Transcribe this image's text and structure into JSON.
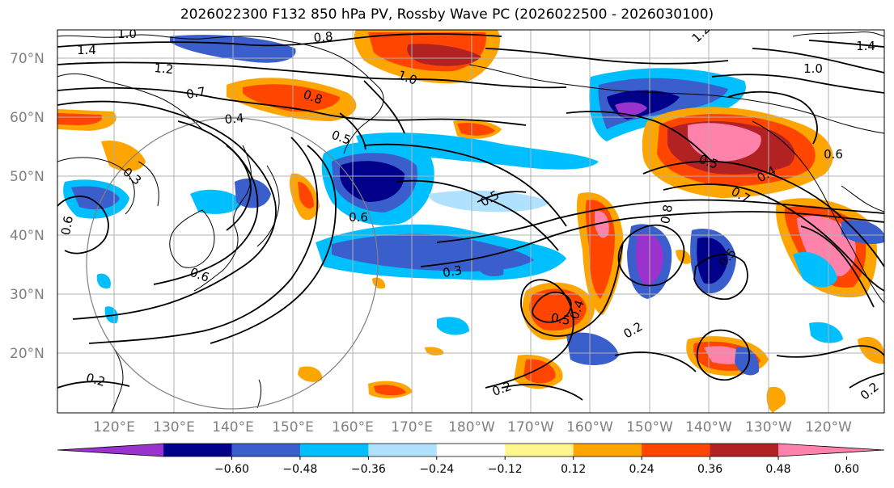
{
  "title": "2026022300 F132 850 hPa PV, Rossby Wave PC (2026022500 - 2026030100)",
  "lat_labels": [
    "70°N",
    "60°N",
    "50°N",
    "40°N",
    "30°N",
    "20°N"
  ],
  "lon_labels": [
    "120°E",
    "130°E",
    "140°E",
    "150°E",
    "160°E",
    "170°E",
    "180°W",
    "170°W",
    "160°W",
    "150°W",
    "140°W",
    "130°W",
    "120°W"
  ],
  "colorbar": {
    "colors": [
      "#9a32cd",
      "#00008b",
      "#3a5fcd",
      "#00bfff",
      "#b0e2ff",
      "#ffffff",
      "#fff68f",
      "#ffa500",
      "#ff4500",
      "#b22222",
      "#ff82ab"
    ],
    "tick_labels": [
      "−0.60",
      "−0.48",
      "−0.36",
      "−0.24",
      "−0.12",
      "0.12",
      "0.24",
      "0.36",
      "0.48",
      "0.60"
    ]
  },
  "contour_labels": [
    "1.0",
    "1.4",
    "0.8",
    "1.2",
    "0.7",
    "0.8",
    "1.0",
    "0.4",
    "0.5",
    "0.3",
    "0.6",
    "0.5",
    "0.6",
    "0.3",
    "0.5",
    "0.4",
    "0.2",
    "0.2",
    "0.2",
    "0.5",
    "0.4",
    "0.7",
    "0.8",
    "0.6",
    "1.2",
    "1.4",
    "1.0",
    "0.5",
    "0.6",
    "0.2"
  ]
}
